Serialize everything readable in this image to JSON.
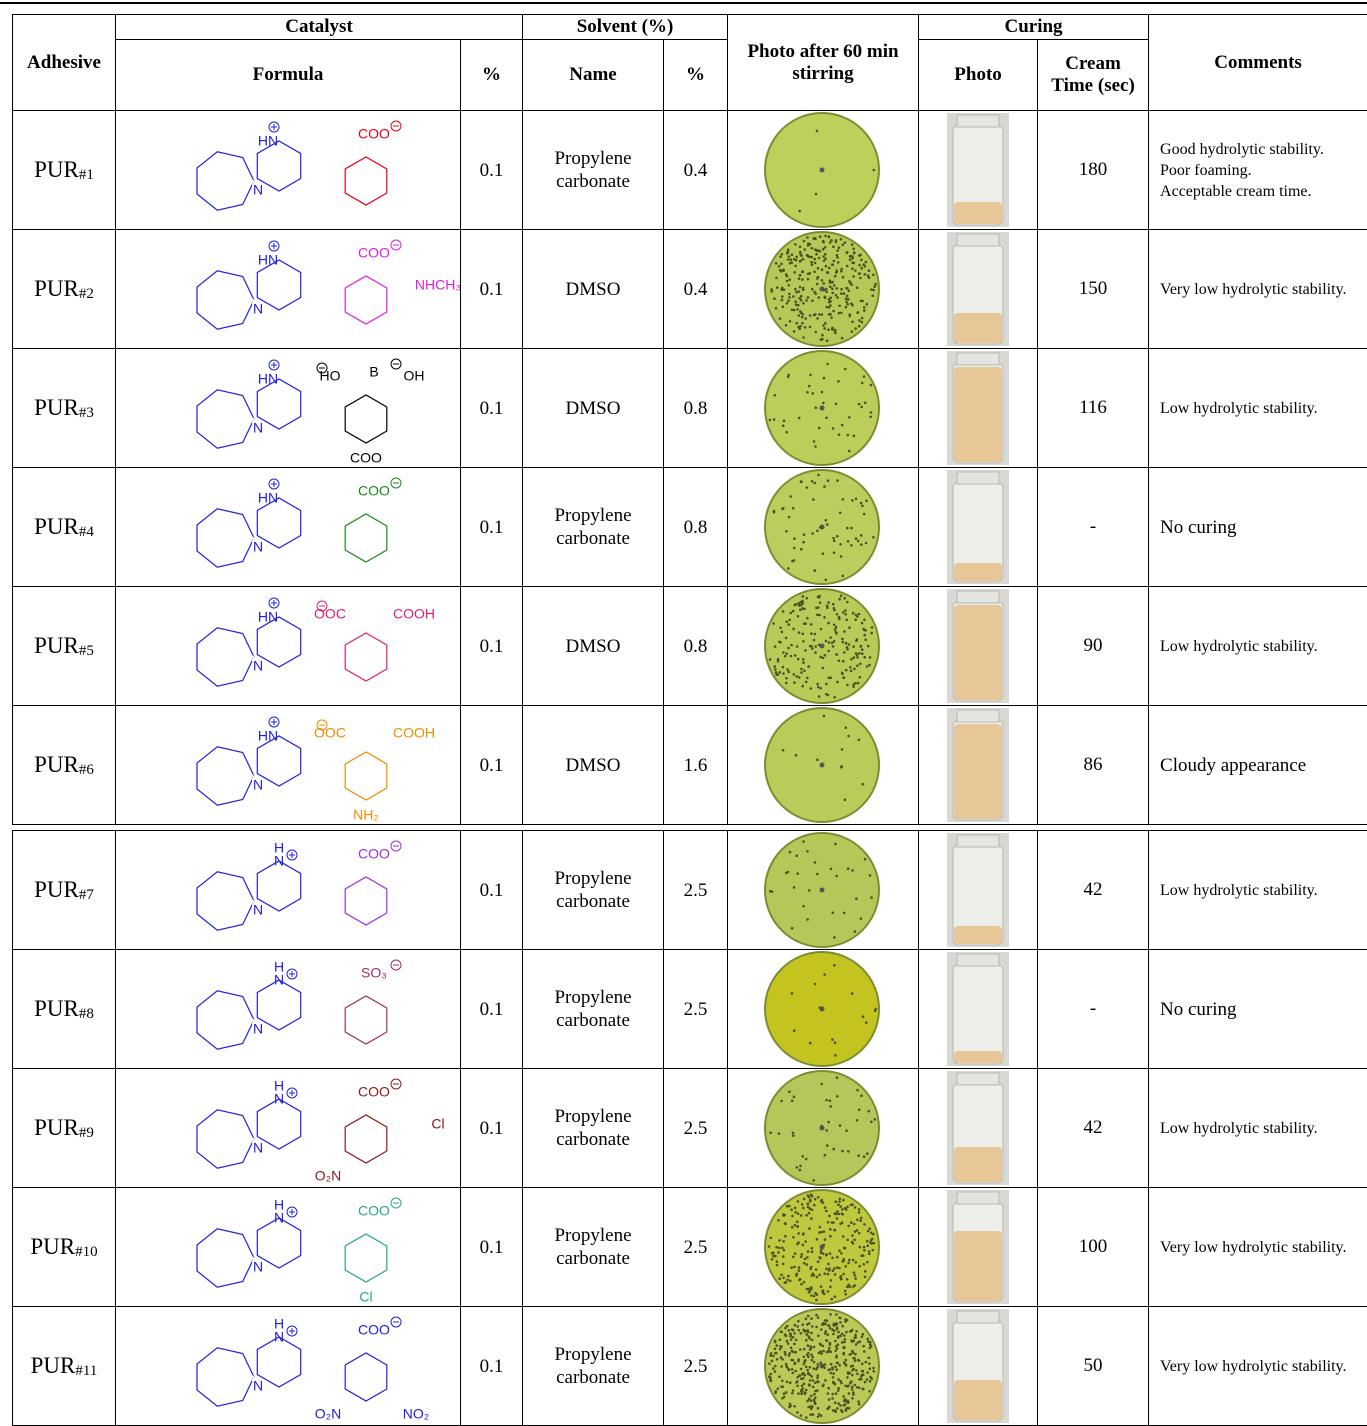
{
  "header": {
    "adhesive": "Adhesive",
    "catalyst": "Catalyst",
    "formula": "Formula",
    "catalyst_pct": "%",
    "solvent": "Solvent (%)",
    "solvent_name": "Name",
    "solvent_pct": "%",
    "photo_stirring": "Photo after 60 min stirring",
    "curing": "Curing",
    "curing_photo": "Photo",
    "cream_time": "Cream Time (sec)",
    "comments": "Comments"
  },
  "rows": [
    {
      "adhesive": "PUR",
      "number": "#1",
      "cation": {
        "iminium": "HN",
        "amine": "N"
      },
      "anion": {
        "color": "#e4001b",
        "labels": {
          "top": "COO"
        }
      },
      "catalyst_pct": 0.1,
      "solvent": "Propylene carbonate",
      "solvent_pct": 0.4,
      "cream_time": 180,
      "comments": [
        "Good hydrolytic stability.",
        "Poor foaming.",
        "Acceptable cream time."
      ]
    },
    {
      "adhesive": "PUR",
      "number": "#2",
      "cation": {
        "iminium": "HN",
        "amine": "N"
      },
      "anion": {
        "color": "#e01ee0",
        "labels": {
          "top": "COO",
          "right": "NHCH₃"
        }
      },
      "catalyst_pct": 0.1,
      "solvent": "DMSO",
      "solvent_pct": 0.4,
      "cream_time": 150,
      "comments": [
        "Very low hydrolytic stability."
      ]
    },
    {
      "adhesive": "PUR",
      "number": "#3",
      "cation": {
        "iminium": "HN",
        "amine": "N"
      },
      "anion": {
        "color": "#000000",
        "labels": {
          "top_left": "HO",
          "top": "B",
          "top_right": "OH",
          "bottom": "COO"
        }
      },
      "catalyst_pct": 0.1,
      "solvent": "DMSO",
      "solvent_pct": 0.8,
      "cream_time": 116,
      "comments": [
        "Low hydrolytic stability."
      ]
    },
    {
      "adhesive": "PUR",
      "number": "#4",
      "cation": {
        "iminium": "HN",
        "amine": "N"
      },
      "anion": {
        "color": "#1a8a1a",
        "labels": {
          "top": "COO"
        }
      },
      "catalyst_pct": 0.1,
      "solvent": "Propylene carbonate",
      "solvent_pct": 0.8,
      "cream_time": "-",
      "comments": [
        "No curing"
      ]
    },
    {
      "adhesive": "PUR",
      "number": "#5",
      "cation": {
        "iminium": "HN",
        "amine": "N"
      },
      "anion": {
        "color": "#e0207a",
        "labels": {
          "top_left": "OOC",
          "top_right": "COOH"
        }
      },
      "catalyst_pct": 0.1,
      "solvent": "DMSO",
      "solvent_pct": 0.8,
      "cream_time": 90,
      "comments": [
        "Low hydrolytic stability."
      ]
    },
    {
      "adhesive": "PUR",
      "number": "#6",
      "cation": {
        "iminium": "HN",
        "amine": "N"
      },
      "anion": {
        "color": "#f08c00",
        "labels": {
          "top_left": "OOC",
          "top_right": "COOH",
          "bottom": "NH₂"
        }
      },
      "catalyst_pct": 0.1,
      "solvent": "DMSO",
      "solvent_pct": 1.6,
      "cream_time": 86,
      "comments": [
        "Cloudy appearance"
      ]
    },
    {
      "adhesive": "PUR",
      "number": "#7",
      "cation": {
        "h": "H",
        "iminium": "N",
        "amine": "N"
      },
      "anion": {
        "color": "#9a30e0",
        "labels": {
          "top": "COO"
        }
      },
      "catalyst_pct": 0.1,
      "solvent": "Propylene carbonate",
      "solvent_pct": 2.5,
      "cream_time": 42,
      "comments": [
        "Low hydrolytic stability."
      ]
    },
    {
      "adhesive": "PUR",
      "number": "#8",
      "cation": {
        "h": "H",
        "iminium": "N",
        "amine": "N"
      },
      "anion": {
        "color": "#a03060",
        "labels": {
          "top": "SO₃"
        }
      },
      "catalyst_pct": 0.1,
      "solvent": "Propylene carbonate",
      "solvent_pct": 2.5,
      "cream_time": "-",
      "comments": [
        "No curing"
      ]
    },
    {
      "adhesive": "PUR",
      "number": "#9",
      "cation": {
        "h": "H",
        "iminium": "N",
        "amine": "N"
      },
      "anion": {
        "color": "#8b1a1a",
        "labels": {
          "top": "COO",
          "right": "Cl",
          "bottom_left": "O₂N"
        }
      },
      "catalyst_pct": 0.1,
      "solvent": "Propylene carbonate",
      "solvent_pct": 2.5,
      "cream_time": 42,
      "comments": [
        "Low hydrolytic stability."
      ]
    },
    {
      "adhesive": "PUR",
      "number": "#10",
      "cation": {
        "h": "H",
        "iminium": "N",
        "amine": "N"
      },
      "anion": {
        "color": "#2aa58a",
        "labels": {
          "top": "COO",
          "bottom": "Cl"
        }
      },
      "catalyst_pct": 0.1,
      "solvent": "Propylene carbonate",
      "solvent_pct": 2.5,
      "cream_time": 100,
      "comments": [
        "Very low hydrolytic stability."
      ]
    },
    {
      "adhesive": "PUR",
      "number": "#11",
      "cation": {
        "h": "H",
        "iminium": "N",
        "amine": "N"
      },
      "anion": {
        "color": "#2020e0",
        "labels": {
          "top": "COO",
          "bottom_left": "O₂N",
          "bottom_right": "NO₂"
        }
      },
      "catalyst_pct": 0.1,
      "solvent": "Propylene carbonate",
      "solvent_pct": 2.5,
      "cream_time": 50,
      "comments": [
        "Very low hydrolytic stability."
      ]
    }
  ]
}
